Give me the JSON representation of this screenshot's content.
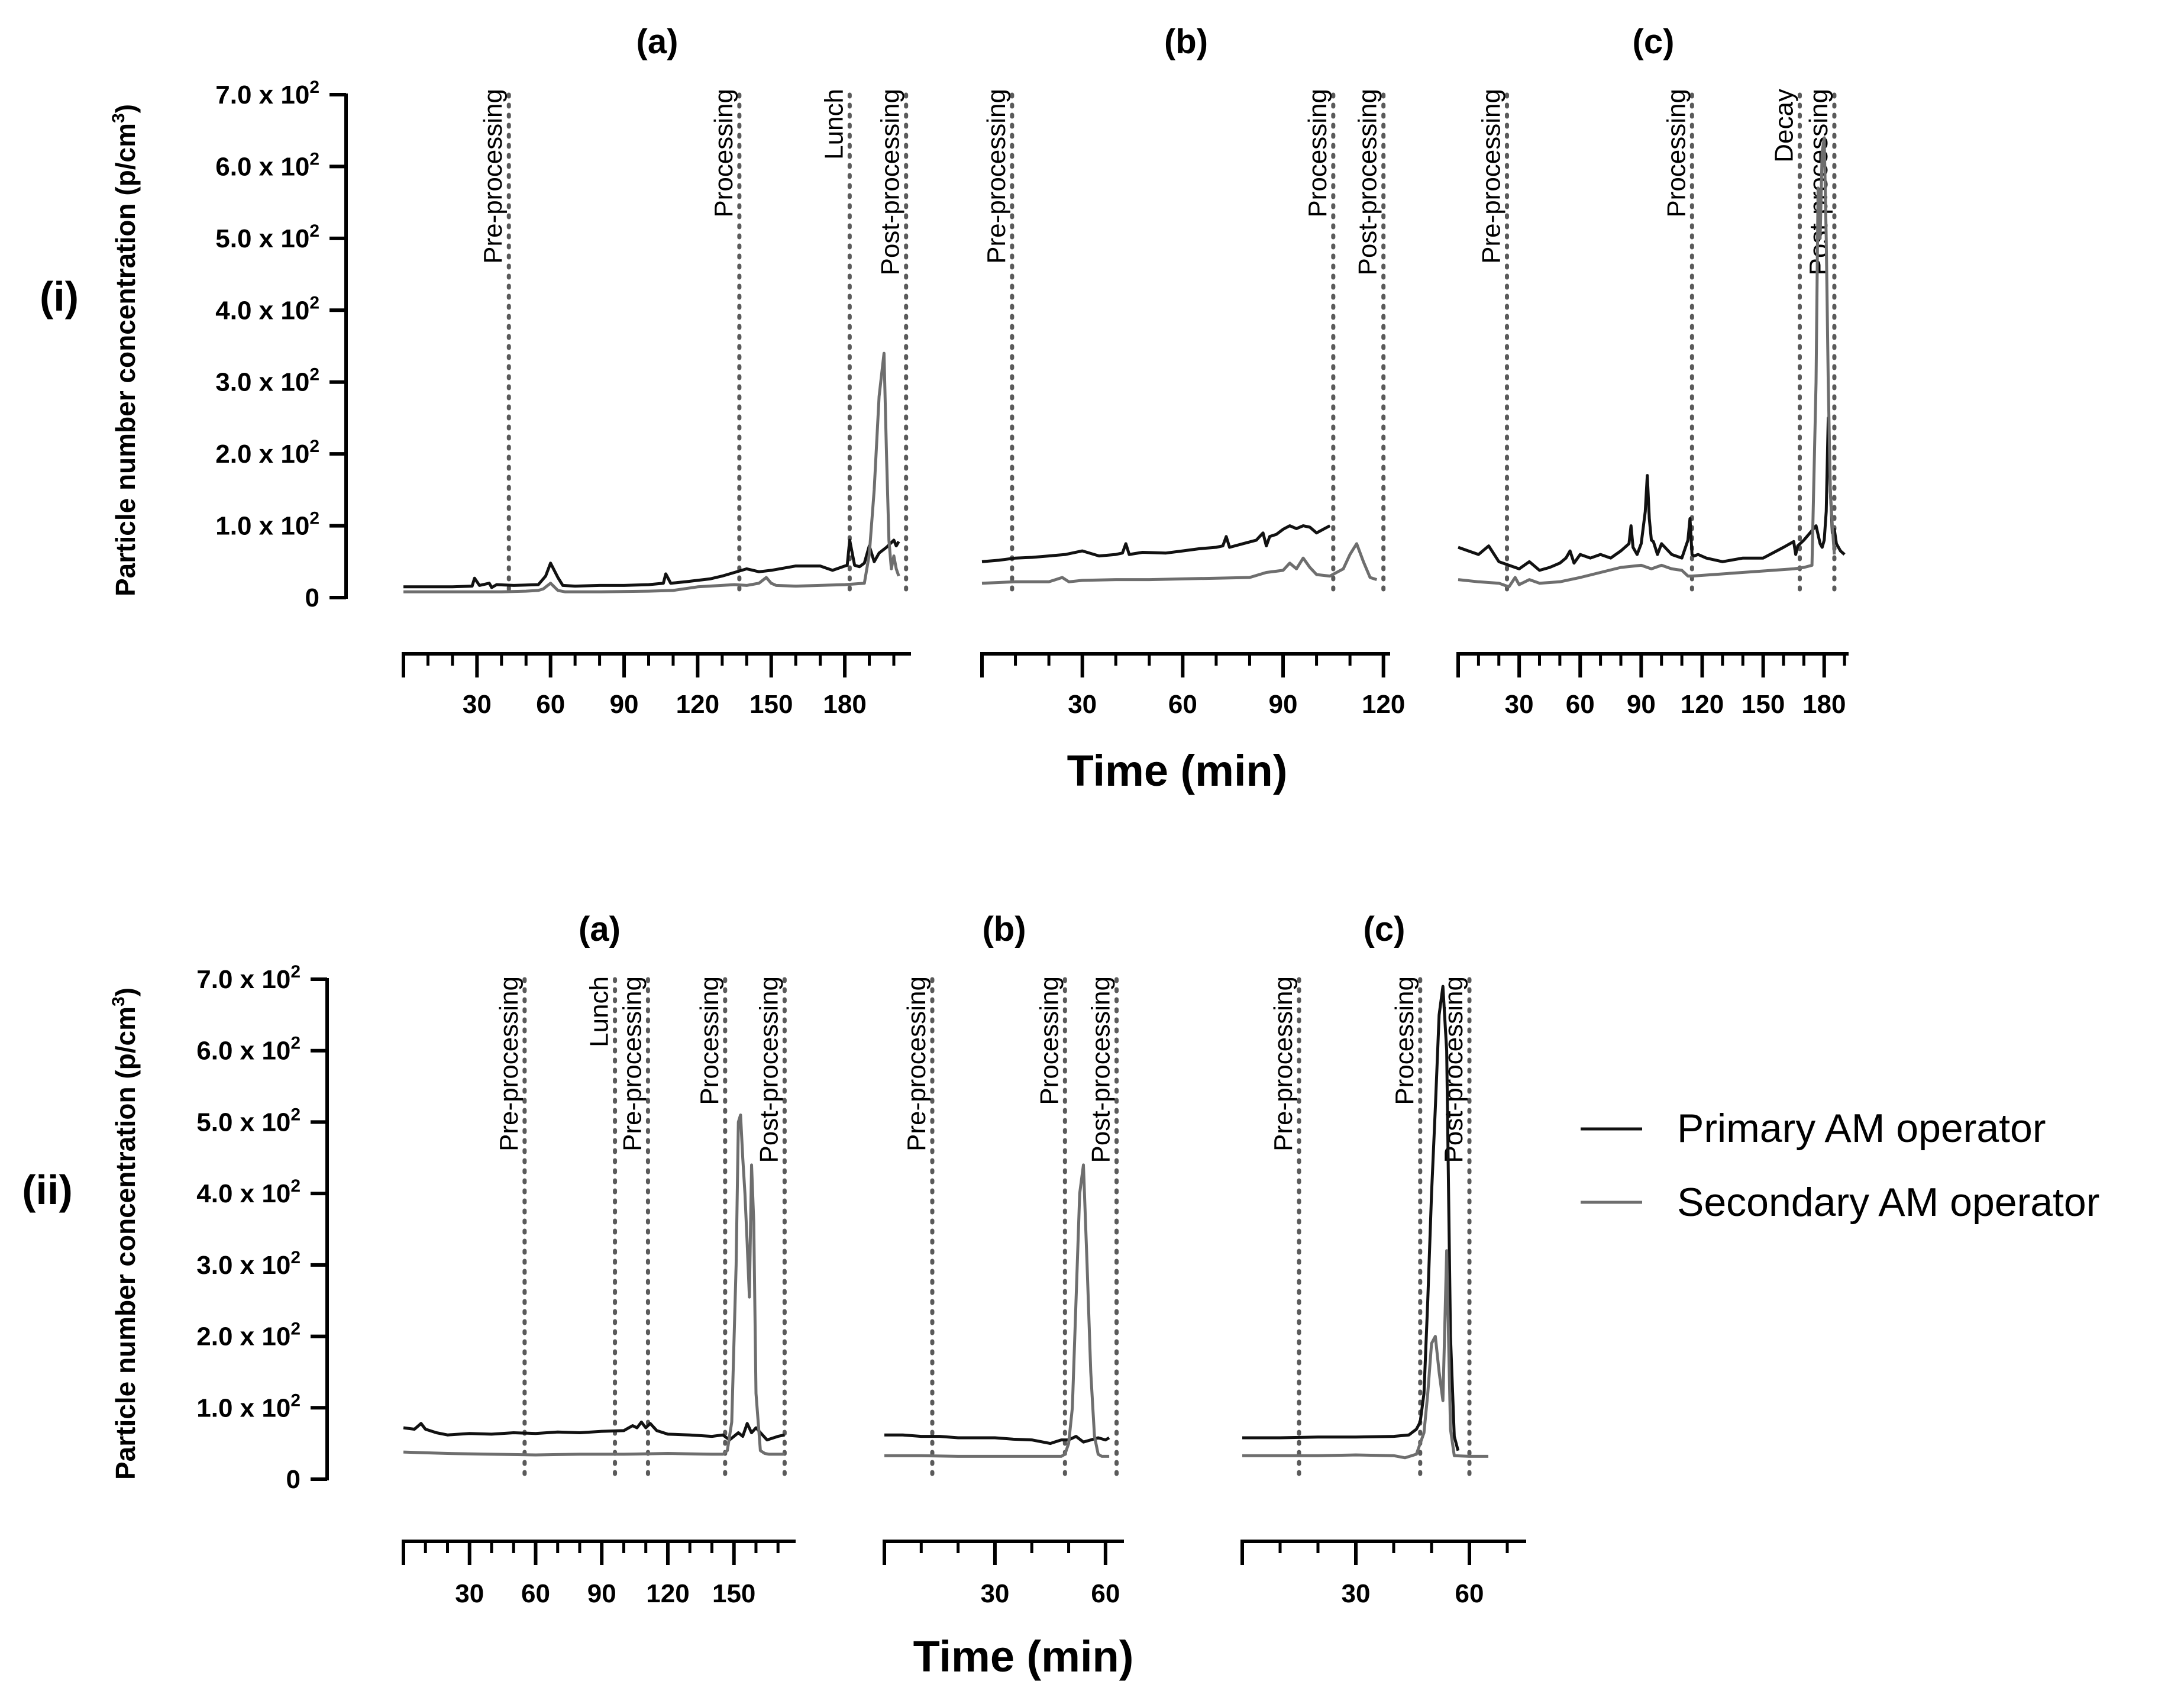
{
  "figure": {
    "ylabel": "Particle number concentration (p/cm",
    "ylabel_sup": "3",
    "ylabel_close": ")",
    "xlabel": "Time (min)",
    "y_ticks": [
      {
        "value": 0,
        "mant": "0",
        "exp": ""
      },
      {
        "value": 100,
        "mant": "1.0 x 10",
        "exp": "2"
      },
      {
        "value": 200,
        "mant": "2.0 x 10",
        "exp": "2"
      },
      {
        "value": 300,
        "mant": "3.0 x 10",
        "exp": "2"
      },
      {
        "value": 400,
        "mant": "4.0 x 10",
        "exp": "2"
      },
      {
        "value": 500,
        "mant": "5.0 x 10",
        "exp": "2"
      },
      {
        "value": 600,
        "mant": "6.0 x 10",
        "exp": "2"
      },
      {
        "value": 700,
        "mant": "7.0 x 10",
        "exp": "2"
      }
    ],
    "ylim": [
      0,
      700
    ]
  },
  "legend": {
    "items": [
      {
        "name": "Primary AM operator",
        "color": "#111111"
      },
      {
        "name": "Secondary AM operator",
        "color": "#6e6e6e"
      }
    ]
  },
  "colors": {
    "primary": "#111111",
    "secondary": "#6e6e6e",
    "event_line": "#5a5a5a"
  },
  "chart_data": [
    {
      "row": "(i)",
      "panel": "(a)",
      "type": "line",
      "xlim": [
        0,
        207
      ],
      "xticks": [
        30,
        60,
        90,
        120,
        150,
        180
      ],
      "minor_step": 10,
      "events": [
        {
          "label": "Pre-processing",
          "x": 43
        },
        {
          "label": "Processing",
          "x": 137
        },
        {
          "label": "Lunch",
          "x": 182
        },
        {
          "label": "Post-processing",
          "x": 205
        }
      ],
      "series": [
        {
          "name": "Primary AM operator",
          "x": [
            0,
            10,
            20,
            28,
            29,
            31,
            35,
            36,
            38,
            45,
            55,
            58,
            60,
            63,
            65,
            70,
            80,
            90,
            100,
            106,
            107,
            109,
            115,
            125,
            130,
            135,
            140,
            145,
            150,
            160,
            170,
            175,
            180,
            181,
            182,
            184,
            186,
            188,
            190,
            192,
            194,
            197,
            200,
            201,
            202
          ],
          "values": [
            15,
            15,
            15,
            16,
            27,
            17,
            20,
            14,
            18,
            17,
            18,
            30,
            48,
            28,
            17,
            16,
            17,
            17,
            18,
            20,
            33,
            20,
            22,
            26,
            30,
            35,
            40,
            36,
            38,
            44,
            44,
            38,
            44,
            45,
            80,
            45,
            43,
            48,
            72,
            50,
            62,
            70,
            80,
            72,
            78
          ]
        },
        {
          "name": "Secondary AM operator",
          "x": [
            0,
            20,
            40,
            50,
            55,
            57,
            60,
            63,
            66,
            70,
            80,
            100,
            110,
            120,
            135,
            140,
            145,
            148,
            150,
            152,
            160,
            180,
            188,
            190,
            192,
            194,
            196,
            197,
            198,
            199,
            200,
            201,
            202
          ],
          "values": [
            8,
            8,
            8,
            9,
            10,
            12,
            20,
            10,
            8,
            8,
            8,
            9,
            10,
            15,
            18,
            17,
            20,
            28,
            20,
            17,
            16,
            18,
            20,
            60,
            150,
            280,
            340,
            200,
            80,
            40,
            58,
            40,
            30
          ]
        }
      ]
    },
    {
      "row": "(i)",
      "panel": "(b)",
      "type": "line",
      "xlim": [
        0,
        122
      ],
      "xticks": [
        30,
        60,
        90,
        120
      ],
      "minor_step": 10,
      "events": [
        {
          "label": "Pre-processing",
          "x": 9
        },
        {
          "label": "Processing",
          "x": 105
        },
        {
          "label": "Post-processing",
          "x": 120
        }
      ],
      "series": [
        {
          "name": "Primary AM operator",
          "x": [
            0,
            5,
            10,
            15,
            20,
            25,
            30,
            35,
            40,
            42,
            43,
            44,
            48,
            55,
            60,
            65,
            70,
            72,
            73,
            74,
            78,
            82,
            84,
            85,
            86,
            88,
            90,
            92,
            94,
            96,
            98,
            100,
            102,
            104
          ],
          "values": [
            50,
            52,
            55,
            56,
            58,
            60,
            65,
            58,
            60,
            62,
            75,
            60,
            63,
            62,
            65,
            68,
            70,
            72,
            85,
            70,
            75,
            80,
            90,
            72,
            85,
            88,
            95,
            100,
            96,
            100,
            98,
            90,
            95,
            100
          ]
        },
        {
          "name": "Secondary AM operator",
          "x": [
            0,
            10,
            20,
            24,
            26,
            30,
            40,
            50,
            60,
            70,
            80,
            85,
            90,
            92,
            94,
            96,
            98,
            100,
            104,
            108,
            110,
            112,
            114,
            116,
            118
          ],
          "values": [
            20,
            22,
            22,
            28,
            22,
            24,
            25,
            25,
            26,
            27,
            28,
            35,
            38,
            48,
            40,
            55,
            42,
            32,
            30,
            40,
            60,
            75,
            50,
            28,
            25
          ]
        }
      ]
    },
    {
      "row": "(i)",
      "panel": "(c)",
      "type": "line",
      "xlim": [
        0,
        192
      ],
      "xticks": [
        30,
        60,
        90,
        120,
        150,
        180
      ],
      "minor_step": 10,
      "events": [
        {
          "label": "Pre-processing",
          "x": 24
        },
        {
          "label": "Processing",
          "x": 115
        },
        {
          "label": "Decay",
          "x": 168
        },
        {
          "label": "Post-processing",
          "x": 185
        }
      ],
      "series": [
        {
          "name": "Primary AM operator",
          "x": [
            0,
            5,
            10,
            15,
            20,
            25,
            30,
            35,
            40,
            45,
            50,
            53,
            55,
            57,
            60,
            65,
            70,
            75,
            80,
            84,
            85,
            86,
            88,
            90,
            92,
            93,
            94,
            95,
            96,
            98,
            100,
            105,
            110,
            113,
            114,
            115,
            116,
            118,
            122,
            130,
            140,
            150,
            160,
            165,
            166,
            167,
            170,
            176,
            178,
            179,
            180,
            181,
            182,
            183,
            184,
            185,
            186,
            188,
            190
          ],
          "values": [
            70,
            65,
            60,
            72,
            50,
            45,
            40,
            50,
            38,
            42,
            48,
            55,
            65,
            48,
            60,
            55,
            60,
            55,
            65,
            75,
            100,
            70,
            60,
            75,
            120,
            170,
            110,
            80,
            78,
            60,
            75,
            60,
            55,
            80,
            110,
            60,
            58,
            60,
            55,
            50,
            55,
            55,
            70,
            78,
            60,
            72,
            80,
            100,
            75,
            70,
            80,
            120,
            250,
            150,
            90,
            95,
            75,
            65,
            60
          ]
        },
        {
          "name": "Secondary AM operator",
          "x": [
            0,
            10,
            20,
            25,
            28,
            30,
            35,
            40,
            50,
            60,
            70,
            80,
            90,
            95,
            100,
            105,
            110,
            113,
            115,
            165,
            170,
            174,
            176,
            177,
            178,
            179,
            180,
            181,
            182,
            183,
            184,
            185
          ],
          "values": [
            25,
            22,
            20,
            15,
            28,
            18,
            25,
            20,
            22,
            28,
            35,
            42,
            45,
            40,
            45,
            40,
            38,
            30,
            30,
            40,
            42,
            45,
            300,
            570,
            500,
            620,
            640,
            500,
            300,
            150,
            100,
            60
          ]
        }
      ]
    },
    {
      "row": "(ii)",
      "panel": "(a)",
      "type": "line",
      "xlim": [
        0,
        178
      ],
      "xticks": [
        30,
        60,
        90,
        120,
        150
      ],
      "minor_step": 10,
      "events": [
        {
          "label": "Pre-processing",
          "x": 55
        },
        {
          "label": "Lunch",
          "x": 96
        },
        {
          "label": "Pre-processing",
          "x": 111
        },
        {
          "label": "Processing",
          "x": 146
        },
        {
          "label": "Post-processing",
          "x": 173
        }
      ],
      "series": [
        {
          "name": "Primary AM operator",
          "x": [
            0,
            5,
            8,
            10,
            15,
            20,
            30,
            40,
            50,
            60,
            70,
            80,
            90,
            100,
            104,
            106,
            108,
            110,
            112,
            115,
            120,
            130,
            140,
            145,
            148,
            150,
            152,
            154,
            156,
            158,
            160,
            165,
            170,
            173
          ],
          "values": [
            72,
            70,
            78,
            70,
            65,
            62,
            64,
            63,
            65,
            64,
            66,
            65,
            67,
            68,
            75,
            72,
            80,
            72,
            78,
            68,
            63,
            62,
            60,
            62,
            55,
            60,
            65,
            60,
            78,
            65,
            72,
            55,
            60,
            62
          ]
        },
        {
          "name": "Secondary AM operator",
          "x": [
            0,
            20,
            40,
            60,
            80,
            100,
            120,
            140,
            145,
            147,
            149,
            151,
            152,
            153,
            154,
            155,
            156,
            157,
            158,
            159,
            160,
            162,
            164,
            166,
            168,
            170,
            173
          ],
          "values": [
            38,
            36,
            35,
            34,
            35,
            35,
            36,
            35,
            35,
            40,
            80,
            300,
            500,
            510,
            450,
            400,
            330,
            255,
            440,
            360,
            120,
            40,
            36,
            35,
            35,
            35,
            35
          ]
        }
      ]
    },
    {
      "row": "(ii)",
      "panel": "(b)",
      "type": "line",
      "xlim": [
        0,
        65
      ],
      "xticks": [
        30,
        60
      ],
      "minor_step": 10,
      "events": [
        {
          "label": "Pre-processing",
          "x": 13
        },
        {
          "label": "Processing",
          "x": 49
        },
        {
          "label": "Post-processing",
          "x": 63
        }
      ],
      "series": [
        {
          "name": "Primary AM operator",
          "x": [
            0,
            5,
            10,
            15,
            20,
            25,
            30,
            35,
            40,
            45,
            48,
            50,
            52,
            54,
            56,
            58,
            60,
            61
          ],
          "values": [
            62,
            62,
            60,
            60,
            58,
            58,
            58,
            56,
            55,
            50,
            55,
            55,
            60,
            52,
            55,
            58,
            55,
            58
          ]
        },
        {
          "name": "Secondary AM operator",
          "x": [
            0,
            10,
            20,
            30,
            40,
            48,
            49,
            50,
            51,
            52,
            53,
            54,
            55,
            56,
            57,
            58,
            59,
            60,
            61
          ],
          "values": [
            33,
            33,
            32,
            32,
            32,
            32,
            35,
            50,
            100,
            250,
            400,
            440,
            300,
            150,
            60,
            35,
            32,
            32,
            32
          ]
        }
      ]
    },
    {
      "row": "(ii)",
      "panel": "(c)",
      "type": "line",
      "xlim": [
        0,
        75
      ],
      "xticks": [
        30,
        60
      ],
      "minor_step": 10,
      "events": [
        {
          "label": "Pre-processing",
          "x": 15
        },
        {
          "label": "Processing",
          "x": 47
        },
        {
          "label": "Post-processing",
          "x": 60
        }
      ],
      "series": [
        {
          "name": "Primary AM operator",
          "x": [
            0,
            10,
            20,
            30,
            40,
            44,
            46,
            47,
            48,
            49,
            50,
            51,
            52,
            53,
            54,
            55,
            56,
            57
          ],
          "values": [
            58,
            58,
            59,
            59,
            60,
            62,
            70,
            80,
            120,
            250,
            400,
            520,
            650,
            690,
            600,
            200,
            60,
            40
          ]
        },
        {
          "name": "Secondary AM operator",
          "x": [
            0,
            10,
            20,
            30,
            40,
            43,
            46,
            47,
            48,
            49,
            50,
            51,
            52,
            53,
            54,
            55,
            56,
            60,
            65
          ],
          "values": [
            33,
            33,
            33,
            34,
            33,
            30,
            35,
            50,
            65,
            120,
            190,
            200,
            150,
            110,
            320,
            70,
            33,
            32,
            32
          ]
        }
      ]
    }
  ]
}
